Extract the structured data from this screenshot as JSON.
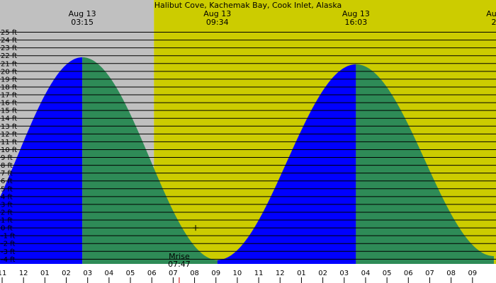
{
  "title": "Halibut Cove, Kachemak Bay, Cook Inlet, Alaska",
  "colors": {
    "night_bg": "#c0c0c0",
    "day_bg": "#cccc00",
    "rising": "#0000ff",
    "falling": "#2e8b57",
    "grid": "#000000"
  },
  "header_events": [
    {
      "date": "Aug 13",
      "time": "03:15",
      "hour": 3.25
    },
    {
      "date": "Aug 13",
      "time": "09:34",
      "hour": 9.567
    },
    {
      "date": "Aug 13",
      "time": "16:03",
      "hour": 16.05
    },
    {
      "date": "Aug",
      "time": "2",
      "hour": 22.5
    }
  ],
  "moon": {
    "label": "Mrise",
    "time": "07:47",
    "hour": 7.783
  },
  "chart_data": {
    "type": "area",
    "title": "Halibut Cove, Kachemak Bay, Cook Inlet, Alaska",
    "xlabel": "",
    "ylabel": "",
    "x_unit": "hour (Aug 13)",
    "xlim": [
      -0.6,
      22.6
    ],
    "ylim": [
      -4.6,
      25.5
    ],
    "y_ticks": [
      -4,
      -3,
      -2,
      -1,
      0,
      1,
      2,
      3,
      4,
      5,
      6,
      7,
      8,
      9,
      10,
      11,
      12,
      13,
      14,
      15,
      16,
      17,
      18,
      19,
      20,
      21,
      22,
      23,
      24,
      25
    ],
    "y_tick_suffix": " ft",
    "x_ticks": [
      {
        "hour": -0.5,
        "label": "11"
      },
      {
        "hour": 0.5,
        "label": "12"
      },
      {
        "hour": 1.5,
        "label": "01"
      },
      {
        "hour": 2.5,
        "label": "02"
      },
      {
        "hour": 3.5,
        "label": "03"
      },
      {
        "hour": 4.5,
        "label": "04"
      },
      {
        "hour": 5.5,
        "label": "05"
      },
      {
        "hour": 6.5,
        "label": "06"
      },
      {
        "hour": 7.5,
        "label": "07"
      },
      {
        "hour": 8.5,
        "label": "08"
      },
      {
        "hour": 9.5,
        "label": "09"
      },
      {
        "hour": 10.5,
        "label": "10"
      },
      {
        "hour": 11.5,
        "label": "11"
      },
      {
        "hour": 12.5,
        "label": "12"
      },
      {
        "hour": 13.5,
        "label": "01"
      },
      {
        "hour": 14.5,
        "label": "02"
      },
      {
        "hour": 15.5,
        "label": "03"
      },
      {
        "hour": 16.5,
        "label": "04"
      },
      {
        "hour": 17.5,
        "label": "05"
      },
      {
        "hour": 18.5,
        "label": "06"
      },
      {
        "hour": 19.5,
        "label": "07"
      },
      {
        "hour": 20.5,
        "label": "08"
      },
      {
        "hour": 21.5,
        "label": "09"
      }
    ],
    "night_until_hour": 6.6,
    "tide_extremes": [
      {
        "hour": -2.9,
        "height": -4.0,
        "type": "low"
      },
      {
        "hour": 3.25,
        "height": 21.8,
        "type": "high"
      },
      {
        "hour": 9.567,
        "height": -4.1,
        "type": "low"
      },
      {
        "hour": 16.05,
        "height": 20.9,
        "type": "high"
      },
      {
        "hour": 22.5,
        "height": -3.6,
        "type": "low"
      }
    ],
    "marker": {
      "hour": 8.55,
      "height": 0.0
    }
  }
}
